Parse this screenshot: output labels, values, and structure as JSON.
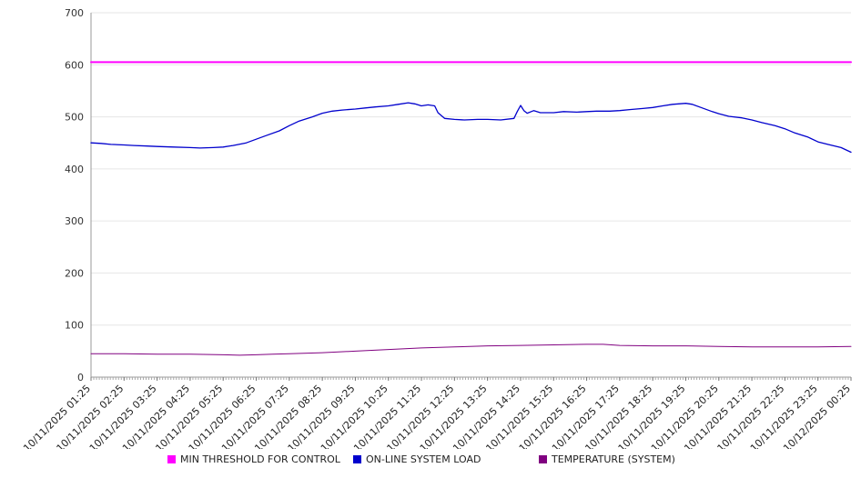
{
  "chart_data": {
    "type": "line",
    "title": "",
    "xlabel": "",
    "ylabel": "",
    "ylim": [
      0,
      700
    ],
    "ytick_step": 100,
    "grid": true,
    "legend_position": "bottom",
    "categories": [
      "10/11/2025 01:25",
      "10/11/2025 02:25",
      "10/11/2025 03:25",
      "10/11/2025 04:25",
      "10/11/2025 05:25",
      "10/11/2025 06:25",
      "10/11/2025 07:25",
      "10/11/2025 08:25",
      "10/11/2025 09:25",
      "10/11/2025 10:25",
      "10/11/2025 11:25",
      "10/11/2025 12:25",
      "10/11/2025 13:25",
      "10/11/2025 14:25",
      "10/11/2025 15:25",
      "10/11/2025 16:25",
      "10/11/2025 17:25",
      "10/11/2025 18:25",
      "10/11/2025 19:25",
      "10/11/2025 20:25",
      "10/11/2025 21:25",
      "10/11/2025 22:25",
      "10/11/2025 23:25",
      "10/12/2025 00:25"
    ],
    "series": [
      {
        "name": "MIN THRESHOLD FOR CONTROL",
        "color": "#ff00ff",
        "width": 2,
        "points": [
          [
            0,
            605
          ],
          [
            23,
            605
          ]
        ]
      },
      {
        "name": "ON-LINE SYSTEM LOAD",
        "color": "#0000cd",
        "width": 1.3,
        "points": [
          [
            0,
            450
          ],
          [
            0.3,
            449
          ],
          [
            0.6,
            447
          ],
          [
            1,
            446
          ],
          [
            1.3,
            445
          ],
          [
            1.7,
            444
          ],
          [
            2,
            443
          ],
          [
            2.5,
            442
          ],
          [
            3,
            441
          ],
          [
            3.3,
            440
          ],
          [
            3.7,
            441
          ],
          [
            4,
            442
          ],
          [
            4.3,
            445
          ],
          [
            4.7,
            450
          ],
          [
            5,
            457
          ],
          [
            5.3,
            464
          ],
          [
            5.7,
            473
          ],
          [
            6,
            483
          ],
          [
            6.3,
            492
          ],
          [
            6.7,
            500
          ],
          [
            7,
            507
          ],
          [
            7.3,
            511
          ],
          [
            7.6,
            513
          ],
          [
            8,
            515
          ],
          [
            8.3,
            517
          ],
          [
            8.6,
            519
          ],
          [
            9,
            521
          ],
          [
            9.3,
            524
          ],
          [
            9.6,
            527
          ],
          [
            9.8,
            525
          ],
          [
            10,
            521
          ],
          [
            10.2,
            523
          ],
          [
            10.4,
            521
          ],
          [
            10.5,
            508
          ],
          [
            10.7,
            497
          ],
          [
            11,
            495
          ],
          [
            11.3,
            494
          ],
          [
            11.7,
            495
          ],
          [
            12,
            495
          ],
          [
            12.4,
            494
          ],
          [
            12.8,
            497
          ],
          [
            12.9,
            510
          ],
          [
            13,
            522
          ],
          [
            13.1,
            512
          ],
          [
            13.2,
            507
          ],
          [
            13.4,
            512
          ],
          [
            13.6,
            508
          ],
          [
            14,
            508
          ],
          [
            14.3,
            510
          ],
          [
            14.7,
            509
          ],
          [
            15,
            510
          ],
          [
            15.3,
            511
          ],
          [
            15.7,
            511
          ],
          [
            16,
            512
          ],
          [
            16.3,
            514
          ],
          [
            16.7,
            516
          ],
          [
            17,
            518
          ],
          [
            17.3,
            521
          ],
          [
            17.6,
            524
          ],
          [
            18,
            526
          ],
          [
            18.2,
            524
          ],
          [
            18.5,
            517
          ],
          [
            18.8,
            510
          ],
          [
            19,
            506
          ],
          [
            19.3,
            501
          ],
          [
            19.7,
            498
          ],
          [
            20,
            494
          ],
          [
            20.3,
            489
          ],
          [
            20.7,
            483
          ],
          [
            21,
            477
          ],
          [
            21.3,
            469
          ],
          [
            21.7,
            461
          ],
          [
            22,
            452
          ],
          [
            22.3,
            447
          ],
          [
            22.7,
            441
          ],
          [
            23,
            432
          ]
        ]
      },
      {
        "name": "TEMPERATURE (SYSTEM)",
        "color": "#800080",
        "width": 1,
        "points": [
          [
            0,
            45
          ],
          [
            1,
            45
          ],
          [
            2,
            44
          ],
          [
            3,
            44
          ],
          [
            4,
            43
          ],
          [
            4.5,
            42
          ],
          [
            5,
            43
          ],
          [
            5.5,
            44
          ],
          [
            6,
            45
          ],
          [
            7,
            47
          ],
          [
            8,
            50
          ],
          [
            9,
            53
          ],
          [
            10,
            56
          ],
          [
            11,
            58
          ],
          [
            12,
            60
          ],
          [
            13,
            61
          ],
          [
            14,
            62
          ],
          [
            15,
            63
          ],
          [
            15.5,
            63
          ],
          [
            16,
            61
          ],
          [
            17,
            60
          ],
          [
            18,
            60
          ],
          [
            19,
            59
          ],
          [
            20,
            58
          ],
          [
            21,
            58
          ],
          [
            22,
            58
          ],
          [
            23,
            59
          ]
        ]
      }
    ]
  }
}
